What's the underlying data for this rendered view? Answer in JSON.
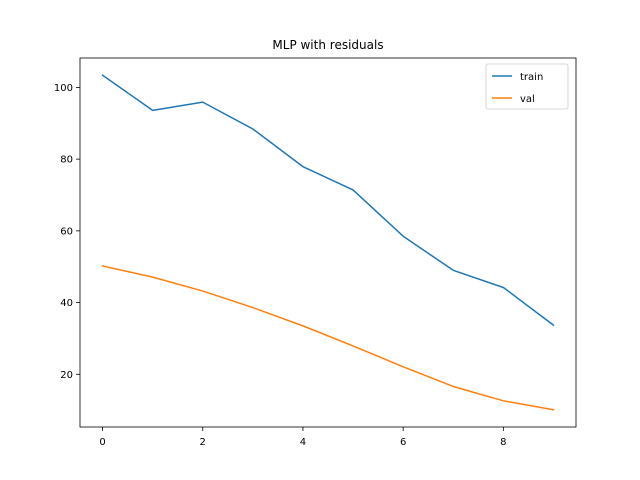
{
  "chart_data": {
    "type": "line",
    "title": "MLP with residuals",
    "xlabel": "",
    "ylabel": "",
    "x": [
      0,
      1,
      2,
      3,
      4,
      5,
      6,
      7,
      8,
      9
    ],
    "xlim": [
      -0.45,
      9.45
    ],
    "ylim": [
      5.3,
      108.2
    ],
    "xticks": [
      0,
      2,
      4,
      6,
      8
    ],
    "yticks": [
      20,
      40,
      60,
      80,
      100
    ],
    "grid": false,
    "legend": "top-right",
    "series": [
      {
        "name": "train",
        "color": "#1f77b4",
        "values": [
          103.4,
          93.6,
          95.9,
          88.4,
          77.9,
          71.4,
          58.5,
          49.0,
          44.2,
          33.7
        ]
      },
      {
        "name": "val",
        "color": "#ff7f0e",
        "values": [
          50.2,
          47.1,
          43.2,
          38.6,
          33.5,
          27.9,
          22.1,
          16.6,
          12.6,
          10.1
        ]
      }
    ]
  }
}
